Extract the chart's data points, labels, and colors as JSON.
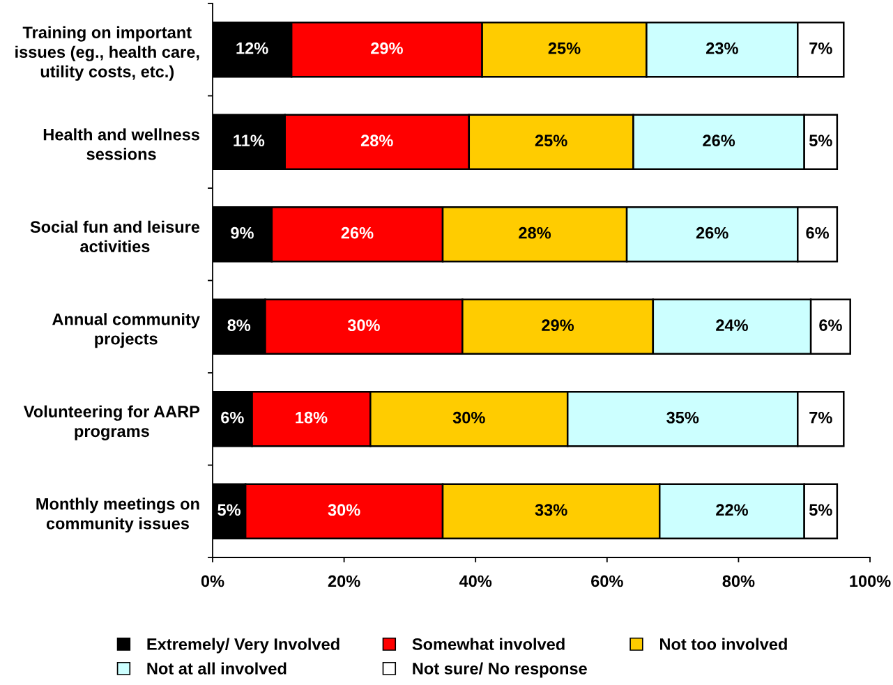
{
  "chart_data": {
    "type": "bar",
    "orientation": "horizontal",
    "stacked": true,
    "categories": [
      "Training on important\nissues (eg., health care,\nutility costs, etc.)",
      "Health and wellness\nsessions",
      "Social fun and leisure\nactivities",
      "Annual community\nprojects",
      "Volunteering for AARP\nprograms",
      "Monthly meetings on\ncommunity issues"
    ],
    "series": [
      {
        "name": "Extremely/ Very Involved",
        "color": "#000000",
        "values": [
          12,
          11,
          9,
          8,
          6,
          5
        ],
        "value_labels": [
          "12%",
          "11%",
          "9%",
          "8%",
          "6%",
          "5%"
        ]
      },
      {
        "name": "Somewhat involved",
        "color": "#ff0000",
        "values": [
          29,
          28,
          26,
          30,
          18,
          30
        ],
        "value_labels": [
          "29%",
          "28%",
          "26%",
          "30%",
          "18%",
          "30%"
        ]
      },
      {
        "name": "Not too involved",
        "color": "#ffcc00",
        "values": [
          25,
          25,
          28,
          29,
          30,
          33
        ],
        "value_labels": [
          "25%",
          "25%",
          "28%",
          "29%",
          "30%",
          "33%"
        ]
      },
      {
        "name": "Not at all involved",
        "color": "#ccffff",
        "values": [
          23,
          26,
          26,
          24,
          35,
          22
        ],
        "value_labels": [
          "23%",
          "26%",
          "26%",
          "24%",
          "35%",
          "22%"
        ]
      },
      {
        "name": "Not sure/ No response",
        "color": "#ffffff",
        "values": [
          7,
          5,
          6,
          6,
          7,
          5
        ],
        "value_labels": [
          "7%",
          "5%",
          "6%",
          "6%",
          "7%",
          "5%"
        ]
      }
    ],
    "xlim": [
      0,
      100
    ],
    "xticks": [
      {
        "value": 0,
        "label": "0%"
      },
      {
        "value": 20,
        "label": "20%"
      },
      {
        "value": 40,
        "label": "40%"
      },
      {
        "value": 60,
        "label": "60%"
      },
      {
        "value": 80,
        "label": "80%"
      },
      {
        "value": 100,
        "label": "100%"
      }
    ],
    "legend": "bottom"
  }
}
